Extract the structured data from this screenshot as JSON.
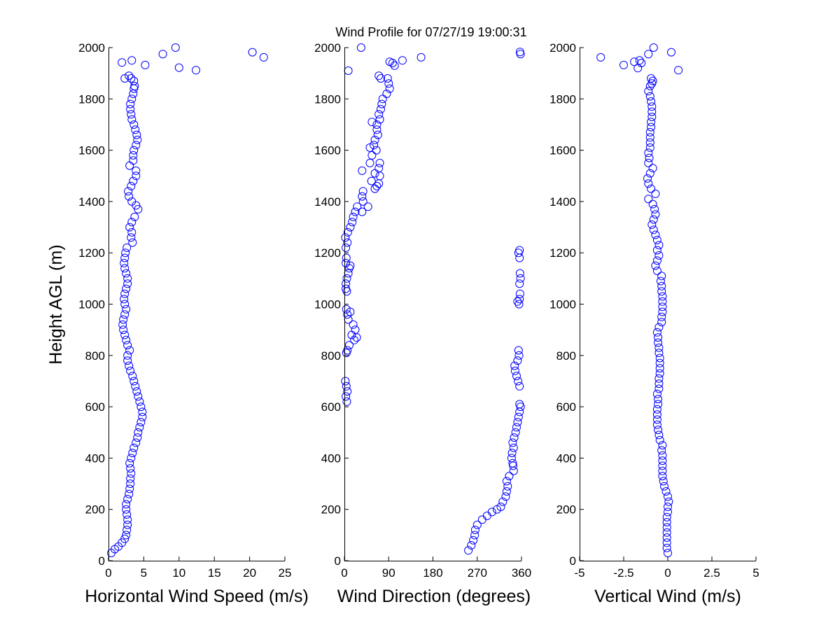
{
  "title": "Wind Profile for  07/27/19 19:00:31",
  "marker_color": "#0000ff",
  "chart_data": [
    {
      "type": "scatter",
      "name": "speed",
      "xlabel": "Horizontal Wind Speed (m/s)",
      "ylabel": "Height AGL (m)",
      "xlim": [
        0,
        25
      ],
      "ylim": [
        0,
        2000
      ],
      "xticks": [
        0,
        5,
        10,
        15,
        20,
        25
      ],
      "xtick_labels": [
        "0",
        "5",
        "10",
        "15",
        "20",
        "25"
      ],
      "yticks": [
        0,
        200,
        400,
        600,
        800,
        1000,
        1200,
        1400,
        1600,
        1800,
        2000
      ],
      "ytick_labels": [
        "0",
        "200",
        "400",
        "600",
        "800",
        "1000",
        "1200",
        "1400",
        "1600",
        "1800",
        "2000"
      ],
      "grid": false,
      "points": [
        [
          0.4,
          30
        ],
        [
          0.9,
          45
        ],
        [
          1.4,
          55
        ],
        [
          1.9,
          70
        ],
        [
          2.3,
          85
        ],
        [
          2.5,
          100
        ],
        [
          2.6,
          120
        ],
        [
          2.7,
          140
        ],
        [
          2.7,
          160
        ],
        [
          2.6,
          180
        ],
        [
          2.5,
          200
        ],
        [
          2.5,
          220
        ],
        [
          2.7,
          240
        ],
        [
          2.9,
          260
        ],
        [
          3.0,
          280
        ],
        [
          3.1,
          300
        ],
        [
          3.1,
          320
        ],
        [
          3.2,
          340
        ],
        [
          3.1,
          360
        ],
        [
          3.0,
          380
        ],
        [
          3.2,
          400
        ],
        [
          3.4,
          420
        ],
        [
          3.6,
          440
        ],
        [
          3.9,
          460
        ],
        [
          4.1,
          480
        ],
        [
          4.2,
          500
        ],
        [
          4.4,
          520
        ],
        [
          4.6,
          540
        ],
        [
          4.8,
          560
        ],
        [
          4.8,
          580
        ],
        [
          4.6,
          600
        ],
        [
          4.4,
          620
        ],
        [
          4.2,
          640
        ],
        [
          4.0,
          660
        ],
        [
          3.8,
          680
        ],
        [
          3.6,
          700
        ],
        [
          3.4,
          720
        ],
        [
          3.1,
          740
        ],
        [
          2.9,
          760
        ],
        [
          2.7,
          780
        ],
        [
          2.7,
          800
        ],
        [
          3.0,
          820
        ],
        [
          2.7,
          840
        ],
        [
          2.5,
          860
        ],
        [
          2.3,
          880
        ],
        [
          2.1,
          900
        ],
        [
          2.0,
          920
        ],
        [
          2.1,
          940
        ],
        [
          2.3,
          960
        ],
        [
          2.5,
          980
        ],
        [
          2.3,
          1000
        ],
        [
          2.2,
          1020
        ],
        [
          2.3,
          1040
        ],
        [
          2.5,
          1060
        ],
        [
          2.7,
          1080
        ],
        [
          2.7,
          1100
        ],
        [
          2.5,
          1120
        ],
        [
          2.3,
          1140
        ],
        [
          2.2,
          1160
        ],
        [
          2.3,
          1180
        ],
        [
          2.4,
          1200
        ],
        [
          2.6,
          1220
        ],
        [
          3.4,
          1240
        ],
        [
          3.2,
          1260
        ],
        [
          3.3,
          1280
        ],
        [
          3.0,
          1300
        ],
        [
          3.3,
          1320
        ],
        [
          3.7,
          1340
        ],
        [
          4.2,
          1370
        ],
        [
          3.9,
          1385
        ],
        [
          3.3,
          1400
        ],
        [
          2.9,
          1420
        ],
        [
          2.8,
          1440
        ],
        [
          3.2,
          1460
        ],
        [
          3.5,
          1480
        ],
        [
          3.9,
          1500
        ],
        [
          3.9,
          1520
        ],
        [
          3.0,
          1540
        ],
        [
          3.5,
          1560
        ],
        [
          3.5,
          1580
        ],
        [
          3.6,
          1600
        ],
        [
          3.9,
          1620
        ],
        [
          4.1,
          1640
        ],
        [
          4.0,
          1660
        ],
        [
          3.8,
          1680
        ],
        [
          3.6,
          1700
        ],
        [
          3.3,
          1720
        ],
        [
          3.2,
          1740
        ],
        [
          3.1,
          1760
        ],
        [
          3.1,
          1780
        ],
        [
          3.3,
          1800
        ],
        [
          3.5,
          1820
        ],
        [
          3.6,
          1840
        ],
        [
          3.7,
          1850
        ],
        [
          3.6,
          1870
        ],
        [
          3.2,
          1880
        ],
        [
          2.3,
          1880
        ],
        [
          2.9,
          1890
        ],
        [
          7.7,
          1975
        ],
        [
          9.5,
          2000
        ],
        [
          20.4,
          1982
        ],
        [
          22.0,
          1962
        ],
        [
          5.2,
          1932
        ],
        [
          10.0,
          1922
        ],
        [
          12.4,
          1912
        ],
        [
          1.9,
          1942
        ],
        [
          3.3,
          1950
        ]
      ]
    },
    {
      "type": "scatter",
      "name": "direction",
      "xlabel": "Wind Direction (degrees)",
      "ylabel": "",
      "xlim": [
        0,
        360
      ],
      "ylim": [
        0,
        2000
      ],
      "xticks": [
        0,
        90,
        180,
        270,
        360
      ],
      "xtick_labels": [
        "0",
        "90",
        "180",
        "270",
        "360"
      ],
      "yticks": [
        0,
        200,
        400,
        600,
        800,
        1000,
        1200,
        1400,
        1600,
        1800,
        2000
      ],
      "ytick_labels": [
        "0",
        "200",
        "400",
        "600",
        "800",
        "1000",
        "1200",
        "1400",
        "1600",
        "1800",
        "2000"
      ],
      "grid": false,
      "points": [
        [
          252,
          40
        ],
        [
          258,
          60
        ],
        [
          262,
          80
        ],
        [
          265,
          100
        ],
        [
          266,
          120
        ],
        [
          270,
          140
        ],
        [
          280,
          160
        ],
        [
          290,
          175
        ],
        [
          300,
          190
        ],
        [
          310,
          200
        ],
        [
          318,
          210
        ],
        [
          322,
          230
        ],
        [
          328,
          250
        ],
        [
          330,
          270
        ],
        [
          332,
          290
        ],
        [
          330,
          310
        ],
        [
          335,
          330
        ],
        [
          344,
          350
        ],
        [
          343,
          370
        ],
        [
          342,
          380
        ],
        [
          340,
          400
        ],
        [
          341,
          420
        ],
        [
          344,
          440
        ],
        [
          342,
          460
        ],
        [
          345,
          480
        ],
        [
          348,
          500
        ],
        [
          350,
          520
        ],
        [
          352,
          540
        ],
        [
          354,
          560
        ],
        [
          356,
          580
        ],
        [
          358,
          600
        ],
        [
          356,
          610
        ],
        [
          5,
          620
        ],
        [
          3,
          640
        ],
        [
          6,
          660
        ],
        [
          4,
          680
        ],
        [
          2,
          700
        ],
        [
          356,
          680
        ],
        [
          353,
          700
        ],
        [
          350,
          720
        ],
        [
          347,
          740
        ],
        [
          346,
          760
        ],
        [
          352,
          780
        ],
        [
          355,
          800
        ],
        [
          354,
          820
        ],
        [
          4,
          810
        ],
        [
          6,
          820
        ],
        [
          10,
          840
        ],
        [
          20,
          860
        ],
        [
          25,
          870
        ],
        [
          15,
          880
        ],
        [
          22,
          900
        ],
        [
          18,
          920
        ],
        [
          8,
          940
        ],
        [
          6,
          960
        ],
        [
          12,
          970
        ],
        [
          4,
          980
        ],
        [
          355,
          1000
        ],
        [
          352,
          1010
        ],
        [
          356,
          1020
        ],
        [
          357,
          1040
        ],
        [
          356,
          1080
        ],
        [
          358,
          1100
        ],
        [
          357,
          1120
        ],
        [
          5,
          1050
        ],
        [
          3,
          1060
        ],
        [
          3,
          1080
        ],
        [
          5,
          1100
        ],
        [
          8,
          1120
        ],
        [
          10,
          1140
        ],
        [
          12,
          1150
        ],
        [
          3,
          1160
        ],
        [
          4,
          1180
        ],
        [
          356,
          1180
        ],
        [
          354,
          1200
        ],
        [
          356,
          1210
        ],
        [
          3,
          1220
        ],
        [
          6,
          1240
        ],
        [
          2,
          1260
        ],
        [
          7,
          1280
        ],
        [
          12,
          1300
        ],
        [
          16,
          1320
        ],
        [
          18,
          1340
        ],
        [
          22,
          1360
        ],
        [
          26,
          1380
        ],
        [
          36,
          1360
        ],
        [
          48,
          1380
        ],
        [
          38,
          1400
        ],
        [
          36,
          1420
        ],
        [
          38,
          1440
        ],
        [
          62,
          1450
        ],
        [
          66,
          1460
        ],
        [
          70,
          1470
        ],
        [
          55,
          1480
        ],
        [
          72,
          1500
        ],
        [
          62,
          1510
        ],
        [
          70,
          1530
        ],
        [
          72,
          1550
        ],
        [
          36,
          1520
        ],
        [
          52,
          1550
        ],
        [
          56,
          1580
        ],
        [
          52,
          1610
        ],
        [
          60,
          1620
        ],
        [
          65,
          1600
        ],
        [
          62,
          1640
        ],
        [
          68,
          1660
        ],
        [
          66,
          1680
        ],
        [
          66,
          1700
        ],
        [
          56,
          1710
        ],
        [
          72,
          1720
        ],
        [
          70,
          1740
        ],
        [
          74,
          1760
        ],
        [
          76,
          1780
        ],
        [
          78,
          1800
        ],
        [
          86,
          1820
        ],
        [
          92,
          1840
        ],
        [
          90,
          1860
        ],
        [
          88,
          1880
        ],
        [
          70,
          1890
        ],
        [
          74,
          1880
        ],
        [
          92,
          1945
        ],
        [
          102,
          1930
        ],
        [
          98,
          1940
        ],
        [
          118,
          1950
        ],
        [
          156,
          1962
        ],
        [
          34,
          2000
        ],
        [
          8,
          1910
        ],
        [
          358,
          1975
        ],
        [
          357,
          1983
        ]
      ]
    },
    {
      "type": "scatter",
      "name": "vertical",
      "xlabel": "Vertical Wind (m/s)",
      "ylabel": "",
      "xlim": [
        -5,
        5
      ],
      "ylim": [
        0,
        2000
      ],
      "xticks": [
        -5,
        -2.5,
        0,
        2.5,
        5
      ],
      "xtick_labels": [
        "-5",
        "-2.5",
        "0",
        "2.5",
        "5"
      ],
      "yticks": [
        0,
        200,
        400,
        600,
        800,
        1000,
        1200,
        1400,
        1600,
        1800,
        2000
      ],
      "ytick_labels": [
        "0",
        "200",
        "400",
        "600",
        "800",
        "1000",
        "1200",
        "1400",
        "1600",
        "1800",
        "2000"
      ],
      "grid": false,
      "points": [
        [
          0,
          30
        ],
        [
          -0.05,
          50
        ],
        [
          -0.05,
          70
        ],
        [
          -0.05,
          90
        ],
        [
          -0.05,
          110
        ],
        [
          -0.05,
          130
        ],
        [
          -0.05,
          150
        ],
        [
          -0.05,
          170
        ],
        [
          0.0,
          190
        ],
        [
          0.0,
          210
        ],
        [
          0.05,
          230
        ],
        [
          0.0,
          250
        ],
        [
          -0.1,
          270
        ],
        [
          -0.2,
          290
        ],
        [
          -0.25,
          310
        ],
        [
          -0.3,
          330
        ],
        [
          -0.3,
          350
        ],
        [
          -0.3,
          370
        ],
        [
          -0.3,
          390
        ],
        [
          -0.3,
          410
        ],
        [
          -0.35,
          430
        ],
        [
          -0.3,
          450
        ],
        [
          -0.45,
          470
        ],
        [
          -0.5,
          490
        ],
        [
          -0.55,
          510
        ],
        [
          -0.6,
          530
        ],
        [
          -0.6,
          550
        ],
        [
          -0.6,
          570
        ],
        [
          -0.6,
          590
        ],
        [
          -0.55,
          610
        ],
        [
          -0.55,
          630
        ],
        [
          -0.6,
          650
        ],
        [
          -0.5,
          670
        ],
        [
          -0.5,
          690
        ],
        [
          -0.5,
          710
        ],
        [
          -0.45,
          730
        ],
        [
          -0.45,
          750
        ],
        [
          -0.45,
          770
        ],
        [
          -0.45,
          790
        ],
        [
          -0.5,
          810
        ],
        [
          -0.5,
          830
        ],
        [
          -0.55,
          850
        ],
        [
          -0.55,
          870
        ],
        [
          -0.6,
          890
        ],
        [
          -0.5,
          910
        ],
        [
          -0.35,
          930
        ],
        [
          -0.35,
          950
        ],
        [
          -0.3,
          970
        ],
        [
          -0.3,
          990
        ],
        [
          -0.3,
          1010
        ],
        [
          -0.3,
          1030
        ],
        [
          -0.35,
          1050
        ],
        [
          -0.35,
          1070
        ],
        [
          -0.4,
          1090
        ],
        [
          -0.35,
          1110
        ],
        [
          -0.6,
          1130
        ],
        [
          -0.7,
          1150
        ],
        [
          -0.6,
          1170
        ],
        [
          -0.5,
          1190
        ],
        [
          -0.6,
          1210
        ],
        [
          -0.5,
          1230
        ],
        [
          -0.6,
          1250
        ],
        [
          -0.7,
          1270
        ],
        [
          -0.8,
          1290
        ],
        [
          -0.9,
          1310
        ],
        [
          -0.8,
          1330
        ],
        [
          -0.7,
          1350
        ],
        [
          -0.75,
          1370
        ],
        [
          -0.85,
          1390
        ],
        [
          -1.1,
          1410
        ],
        [
          -0.7,
          1430
        ],
        [
          -0.95,
          1450
        ],
        [
          -1.1,
          1470
        ],
        [
          -1.15,
          1490
        ],
        [
          -1.0,
          1510
        ],
        [
          -0.85,
          1530
        ],
        [
          -1.1,
          1550
        ],
        [
          -1.05,
          1570
        ],
        [
          -1.1,
          1590
        ],
        [
          -1.0,
          1610
        ],
        [
          -1.0,
          1630
        ],
        [
          -1.0,
          1650
        ],
        [
          -1.0,
          1670
        ],
        [
          -0.95,
          1690
        ],
        [
          -0.95,
          1710
        ],
        [
          -0.9,
          1730
        ],
        [
          -0.9,
          1750
        ],
        [
          -0.9,
          1770
        ],
        [
          -0.95,
          1790
        ],
        [
          -1.0,
          1810
        ],
        [
          -1.1,
          1830
        ],
        [
          -1.0,
          1850
        ],
        [
          -0.9,
          1860
        ],
        [
          -0.85,
          1870
        ],
        [
          -0.95,
          1880
        ],
        [
          -3.8,
          1962
        ],
        [
          -2.5,
          1932
        ],
        [
          -1.6,
          1950
        ],
        [
          -1.7,
          1920
        ],
        [
          -1.5,
          1940
        ],
        [
          -1.1,
          1975
        ],
        [
          -0.8,
          2000
        ],
        [
          0.2,
          1982
        ],
        [
          0.6,
          1912
        ],
        [
          -1.9,
          1945
        ]
      ]
    }
  ]
}
